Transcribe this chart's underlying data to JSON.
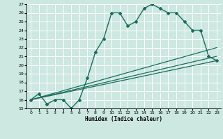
{
  "title": "",
  "xlabel": "Humidex (Indice chaleur)",
  "xlim": [
    -0.5,
    23.5
  ],
  "ylim": [
    15,
    27
  ],
  "yticks": [
    15,
    16,
    17,
    18,
    19,
    20,
    21,
    22,
    23,
    24,
    25,
    26,
    27
  ],
  "xticks": [
    0,
    1,
    2,
    3,
    4,
    5,
    6,
    7,
    8,
    9,
    10,
    11,
    12,
    13,
    14,
    15,
    16,
    17,
    18,
    19,
    20,
    21,
    22,
    23
  ],
  "bg_color": "#cce8e0",
  "line_color": "#1a6e5e",
  "grid_color": "#ffffff",
  "lines": [
    {
      "x": [
        0,
        1,
        2,
        3,
        4,
        5,
        6,
        7,
        8,
        9,
        10,
        11,
        12,
        13,
        14,
        15,
        16,
        17,
        18,
        19,
        20,
        21,
        22,
        23
      ],
      "y": [
        16,
        16.7,
        15.5,
        16,
        16,
        15,
        16,
        18.5,
        21.5,
        23,
        26,
        26,
        24.5,
        25,
        26.5,
        27,
        26.5,
        26,
        26,
        25,
        24,
        24,
        21,
        20.5
      ],
      "marker": "D",
      "markersize": 2.0,
      "linewidth": 1.0
    },
    {
      "x": [
        0,
        23
      ],
      "y": [
        16,
        20.5
      ],
      "marker": null,
      "markersize": 0,
      "linewidth": 0.9
    },
    {
      "x": [
        0,
        23
      ],
      "y": [
        16,
        21.0
      ],
      "marker": null,
      "markersize": 0,
      "linewidth": 0.9
    },
    {
      "x": [
        0,
        23
      ],
      "y": [
        16,
        22.0
      ],
      "marker": null,
      "markersize": 0,
      "linewidth": 0.9
    }
  ]
}
